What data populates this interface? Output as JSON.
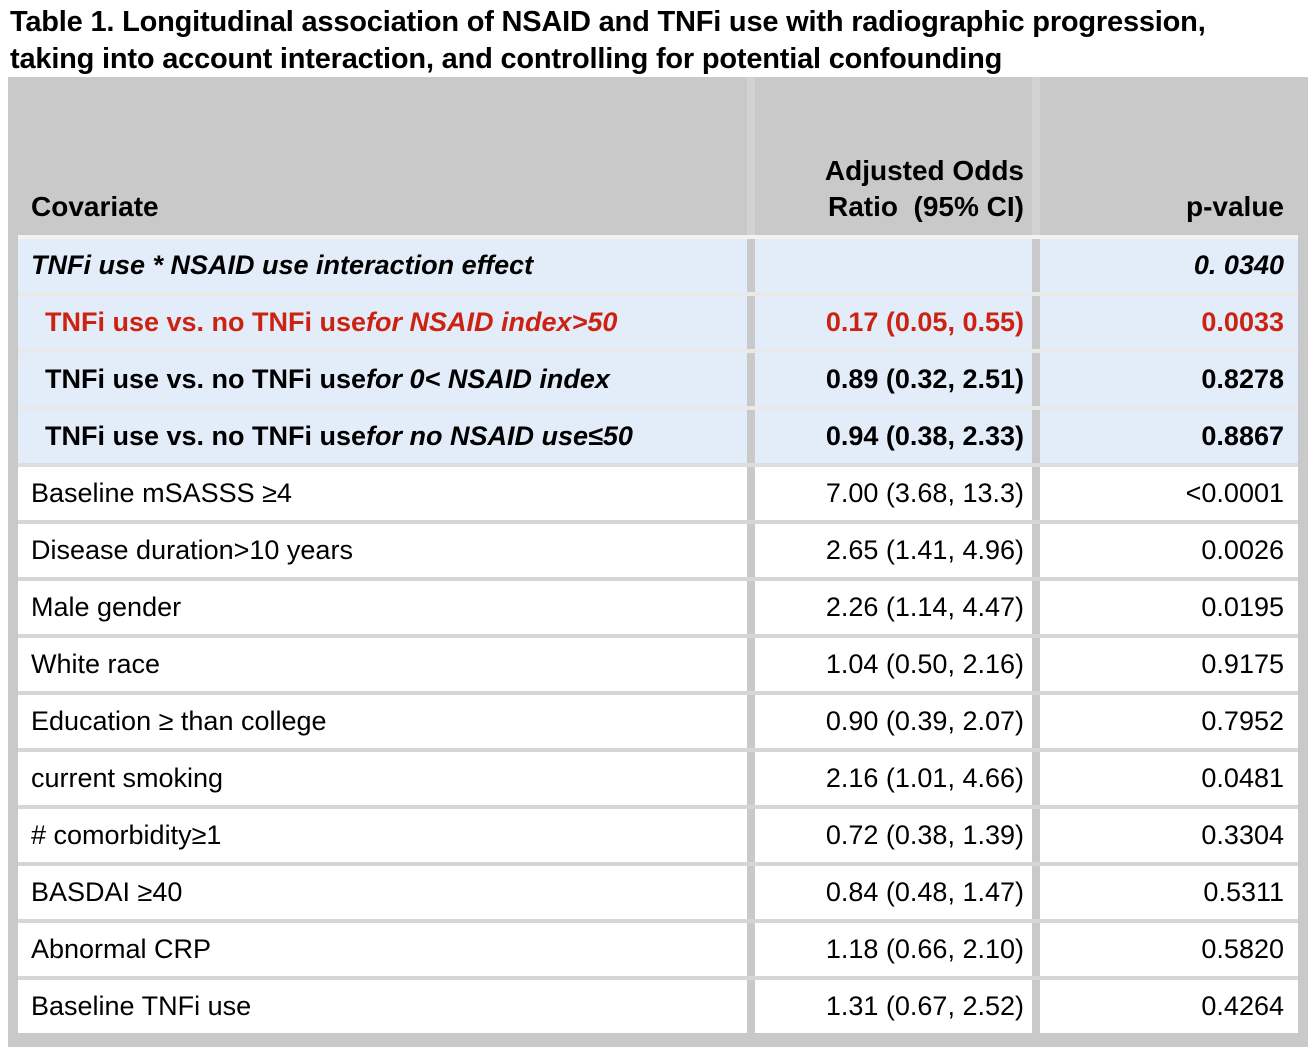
{
  "title": "Table 1. Longitudinal association of NSAID and TNFi use with radiographic progression,\ntaking into account interaction, and controlling for potential confounding",
  "header": {
    "covariate": "Covariate",
    "odds_ratio": "Adjusted Odds\nRatio  (95% CI)",
    "p_value": "p-value"
  },
  "rows": [
    {
      "label": "TNFi use * NSAID use interaction effect",
      "label_italic": "",
      "or": "",
      "p": "0. 0340"
    },
    {
      "label": "TNFi use vs. no TNFi use ",
      "label_italic": "for NSAID index>50",
      "or": "0.17 (0.05, 0.55)",
      "p": "0.0033"
    },
    {
      "label": "TNFi use vs. no TNFi use ",
      "label_italic": "for 0< NSAID index",
      "or": "0.89 (0.32, 2.51)",
      "p": "0.8278"
    },
    {
      "label": "TNFi use vs. no TNFi use ",
      "label_italic": "for no NSAID use≤50",
      "or": "0.94 (0.38, 2.33)",
      "p": "0.8867"
    },
    {
      "label": "Baseline mSASSS ≥4",
      "label_italic": "",
      "or": "7.00 (3.68, 13.3)",
      "p": "<0.0001"
    },
    {
      "label": "Disease duration>10 years",
      "label_italic": "",
      "or": "2.65 (1.41, 4.96)",
      "p": "0.0026"
    },
    {
      "label": "Male gender",
      "label_italic": "",
      "or": "2.26 (1.14, 4.47)",
      "p": "0.0195"
    },
    {
      "label": "White race",
      "label_italic": "",
      "or": "1.04 (0.50, 2.16)",
      "p": "0.9175"
    },
    {
      "label": "Education ≥ than college",
      "label_italic": "",
      "or": "0.90 (0.39, 2.07)",
      "p": "0.7952"
    },
    {
      "label": "current smoking",
      "label_italic": "",
      "or": "2.16 (1.01, 4.66)",
      "p": "0.0481"
    },
    {
      "label": "# comorbidity≥1",
      "label_italic": "",
      "or": "0.72 (0.38, 1.39)",
      "p": "0.3304"
    },
    {
      "label": "BASDAI ≥40",
      "label_italic": "",
      "or": "0.84 (0.48, 1.47)",
      "p": "0.5311"
    },
    {
      "label": "Abnormal CRP",
      "label_italic": "",
      "or": "1.18 (0.66, 2.10)",
      "p": "0.5820"
    },
    {
      "label": "Baseline TNFi use",
      "label_italic": "",
      "or": "1.31 (0.67, 2.52)",
      "p": "0.4264"
    }
  ],
  "colors": {
    "header_bg": "#c9c9c9",
    "band_bg": "#e3edf9",
    "highlight_red": "#cc2211"
  }
}
